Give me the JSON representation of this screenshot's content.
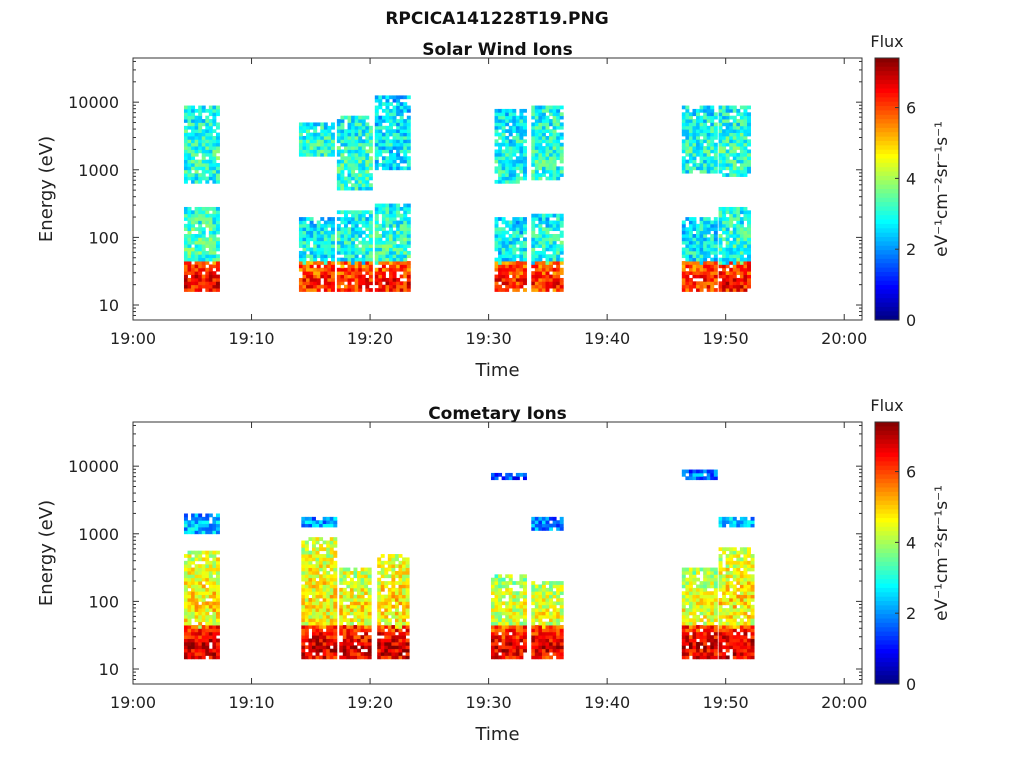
{
  "figure": {
    "title": "RPCICA141228T19.PNG"
  },
  "chart_data": [
    {
      "type": "heatmap",
      "title": "Solar Wind Ions",
      "xlabel": "Time",
      "ylabel": "Energy (eV)",
      "x_ticks": [
        "19:00",
        "19:10",
        "19:20",
        "19:30",
        "19:40",
        "19:50",
        "20:00"
      ],
      "x_range_minutes": [
        0,
        61.5
      ],
      "y_scale": "log",
      "y_ticks": [
        10,
        100,
        1000,
        10000
      ],
      "y_tick_labels": [
        "10",
        "100",
        "1000",
        "10000"
      ],
      "ylim": [
        6,
        45000
      ],
      "colorbar": {
        "label_top": "Flux",
        "label_side": "eV⁻¹cm⁻²sr⁻¹s⁻¹",
        "ticks": [
          0,
          2,
          4,
          6
        ],
        "range": [
          0,
          7.4
        ],
        "colormap": "jet"
      },
      "bursts": [
        {
          "t_start": 4.3,
          "t_end": 7.0,
          "components": [
            {
              "e_lo": 15,
              "e_hi": 45,
              "intensity": 6.3
            },
            {
              "e_lo": 40,
              "e_hi": 280,
              "intensity": 3.2
            },
            {
              "e_lo": 650,
              "e_hi": 9000,
              "intensity": 3.0
            }
          ]
        },
        {
          "t_start": 14.0,
          "t_end": 16.8,
          "components": [
            {
              "e_lo": 15,
              "e_hi": 45,
              "intensity": 6.0
            },
            {
              "e_lo": 40,
              "e_hi": 200,
              "intensity": 2.8
            },
            {
              "e_lo": 1500,
              "e_hi": 5000,
              "intensity": 3.0
            }
          ]
        },
        {
          "t_start": 17.2,
          "t_end": 20.0,
          "components": [
            {
              "e_lo": 15,
              "e_hi": 45,
              "intensity": 6.0
            },
            {
              "e_lo": 40,
              "e_hi": 250,
              "intensity": 2.9
            },
            {
              "e_lo": 500,
              "e_hi": 6000,
              "intensity": 3.0
            }
          ]
        },
        {
          "t_start": 20.4,
          "t_end": 23.2,
          "components": [
            {
              "e_lo": 15,
              "e_hi": 45,
              "intensity": 6.1
            },
            {
              "e_lo": 40,
              "e_hi": 300,
              "intensity": 3.0
            },
            {
              "e_lo": 1000,
              "e_hi": 12000,
              "intensity": 2.6
            }
          ]
        },
        {
          "t_start": 30.5,
          "t_end": 33.0,
          "components": [
            {
              "e_lo": 15,
              "e_hi": 45,
              "intensity": 6.0
            },
            {
              "e_lo": 40,
              "e_hi": 200,
              "intensity": 2.7
            },
            {
              "e_lo": 600,
              "e_hi": 8000,
              "intensity": 2.8
            }
          ]
        },
        {
          "t_start": 33.6,
          "t_end": 36.0,
          "components": [
            {
              "e_lo": 15,
              "e_hi": 45,
              "intensity": 6.0
            },
            {
              "e_lo": 40,
              "e_hi": 220,
              "intensity": 2.9
            },
            {
              "e_lo": 700,
              "e_hi": 9000,
              "intensity": 3.0
            }
          ]
        },
        {
          "t_start": 46.3,
          "t_end": 49.0,
          "components": [
            {
              "e_lo": 15,
              "e_hi": 45,
              "intensity": 6.0
            },
            {
              "e_lo": 40,
              "e_hi": 200,
              "intensity": 2.7
            },
            {
              "e_lo": 900,
              "e_hi": 9000,
              "intensity": 2.9
            }
          ]
        },
        {
          "t_start": 49.4,
          "t_end": 52.0,
          "components": [
            {
              "e_lo": 15,
              "e_hi": 45,
              "intensity": 6.2
            },
            {
              "e_lo": 40,
              "e_hi": 280,
              "intensity": 3.0
            },
            {
              "e_lo": 800,
              "e_hi": 9000,
              "intensity": 3.0
            }
          ]
        }
      ]
    },
    {
      "type": "heatmap",
      "title": "Cometary Ions",
      "xlabel": "Time",
      "ylabel": "Energy (eV)",
      "x_ticks": [
        "19:00",
        "19:10",
        "19:20",
        "19:30",
        "19:40",
        "19:50",
        "20:00"
      ],
      "x_range_minutes": [
        0,
        61.5
      ],
      "y_scale": "log",
      "y_ticks": [
        10,
        100,
        1000,
        10000
      ],
      "y_tick_labels": [
        "10",
        "100",
        "1000",
        "10000"
      ],
      "ylim": [
        6,
        45000
      ],
      "colorbar": {
        "label_top": "Flux",
        "label_side": "eV⁻¹cm⁻²sr⁻¹s⁻¹",
        "ticks": [
          0,
          2,
          4,
          6
        ],
        "range": [
          0,
          7.4
        ],
        "colormap": "jet"
      },
      "bursts": [
        {
          "t_start": 4.3,
          "t_end": 7.0,
          "components": [
            {
              "e_lo": 14,
              "e_hi": 45,
              "intensity": 6.6
            },
            {
              "e_lo": 40,
              "e_hi": 550,
              "intensity": 4.6
            },
            {
              "e_lo": 1000,
              "e_hi": 1900,
              "intensity": 2.2
            }
          ]
        },
        {
          "t_start": 14.2,
          "t_end": 17.0,
          "components": [
            {
              "e_lo": 14,
              "e_hi": 45,
              "intensity": 6.5
            },
            {
              "e_lo": 40,
              "e_hi": 900,
              "intensity": 4.5
            },
            {
              "e_lo": 1200,
              "e_hi": 1800,
              "intensity": 2.1
            }
          ]
        },
        {
          "t_start": 17.4,
          "t_end": 20.0,
          "components": [
            {
              "e_lo": 14,
              "e_hi": 45,
              "intensity": 6.5
            },
            {
              "e_lo": 40,
              "e_hi": 300,
              "intensity": 4.5
            }
          ]
        },
        {
          "t_start": 20.6,
          "t_end": 23.3,
          "components": [
            {
              "e_lo": 14,
              "e_hi": 45,
              "intensity": 6.6
            },
            {
              "e_lo": 40,
              "e_hi": 500,
              "intensity": 4.6
            }
          ]
        },
        {
          "t_start": 30.2,
          "t_end": 33.0,
          "components": [
            {
              "e_lo": 14,
              "e_hi": 45,
              "intensity": 6.4
            },
            {
              "e_lo": 40,
              "e_hi": 250,
              "intensity": 4.2
            },
            {
              "e_lo": 6500,
              "e_hi": 8000,
              "intensity": 1.5
            }
          ]
        },
        {
          "t_start": 33.6,
          "t_end": 36.2,
          "components": [
            {
              "e_lo": 14,
              "e_hi": 45,
              "intensity": 6.4
            },
            {
              "e_lo": 40,
              "e_hi": 200,
              "intensity": 4.3
            },
            {
              "e_lo": 1100,
              "e_hi": 1700,
              "intensity": 1.9
            }
          ]
        },
        {
          "t_start": 46.3,
          "t_end": 49.2,
          "components": [
            {
              "e_lo": 14,
              "e_hi": 45,
              "intensity": 6.5
            },
            {
              "e_lo": 40,
              "e_hi": 300,
              "intensity": 4.3
            },
            {
              "e_lo": 6000,
              "e_hi": 9000,
              "intensity": 1.8
            }
          ]
        },
        {
          "t_start": 49.4,
          "t_end": 52.2,
          "components": [
            {
              "e_lo": 14,
              "e_hi": 45,
              "intensity": 6.6
            },
            {
              "e_lo": 40,
              "e_hi": 600,
              "intensity": 4.6
            },
            {
              "e_lo": 1200,
              "e_hi": 1800,
              "intensity": 2.3
            }
          ]
        }
      ]
    }
  ]
}
